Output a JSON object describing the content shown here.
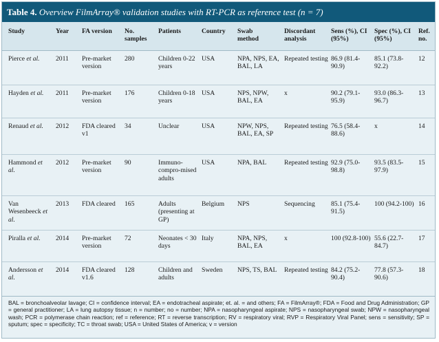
{
  "title": {
    "label": "Table 4.",
    "caption": "Overview FilmArray® validation studies with RT-PCR as reference test (n = 7)"
  },
  "headers": {
    "study": "Study",
    "year": "Year",
    "fa": "FA version",
    "samples": "No. samples",
    "patients": "Patients",
    "country": "Country",
    "swab": "Swab method",
    "discordant": "Discordant analysis",
    "sens": "Sens (%), CI (95%)",
    "spec": "Spec (%), CI (95%)",
    "ref": "Ref. no."
  },
  "rows": [
    {
      "study": "Pierce",
      "etal": "et al.",
      "year": "2011",
      "fa": "Pre-market version",
      "samples": "280",
      "patients": "Children 0-22 years",
      "country": "USA",
      "swab": "NPA, NPS, EA, BAL, LA",
      "discordant": "Repeated testing",
      "sens": "86.9 (81.4-90.9)",
      "spec": "85.1 (73.8-92.2)",
      "ref": "12"
    },
    {
      "study": "Hayden",
      "etal": "et al.",
      "year": "2011",
      "fa": "Pre-market version",
      "samples": "176",
      "patients": "Children 0-18 years",
      "country": "USA",
      "swab": "NPS, NPW, BAL, EA",
      "discordant": "x",
      "sens": "90.2 (79.1-95.9)",
      "spec": "93.0 (86.3-96.7)",
      "ref": "13"
    },
    {
      "study": "Renaud",
      "etal": "et al.",
      "year": "2012",
      "fa": "FDA cleared v1",
      "samples": "34",
      "patients": "Unclear",
      "country": "USA",
      "swab": "NPW, NPS, BAL, EA, SP",
      "discordant": "Repeated testing",
      "sens": "76.5 (58.4-88.6)",
      "spec": "x",
      "ref": "14"
    },
    {
      "study": "Hammond",
      "etal": "et al.",
      "year": "2012",
      "fa": "Pre-market version",
      "samples": "90",
      "patients": "Immuno-compro-mised adults",
      "country": "USA",
      "swab": "NPA, BAL",
      "discordant": "Repeated testing",
      "sens": "92.9 (75.0-98.8)",
      "spec": "93.5 (83.5-97.9)",
      "ref": "15"
    },
    {
      "study": "Van Wesenbeeck",
      "etal": "et al.",
      "year": "2013",
      "fa": "FDA cleared",
      "samples": "165",
      "patients": "Adults (presenting at GP)",
      "country": "Belgium",
      "swab": "NPS",
      "discordant": "Sequencing",
      "sens": "85.1 (75.4-91.5)",
      "spec": "100 (94.2-100)",
      "ref": "16"
    },
    {
      "study": "Piralla",
      "etal": "et al.",
      "year": "2014",
      "fa": "Pre-market version",
      "samples": "72",
      "patients": "Neonates < 30 days",
      "country": "Italy",
      "swab": "NPA, NPS, BAL, EA",
      "discordant": "x",
      "sens": "100 (92.8-100)",
      "spec": "55.6 (22.7-84.7)",
      "ref": "17"
    },
    {
      "study": "Andersson",
      "etal": "et al.",
      "year": "2014",
      "fa": "FDA cleared v1.6",
      "samples": "128",
      "patients": "Children and adults",
      "country": "Sweden",
      "swab": "NPS, TS, BAL",
      "discordant": "Repeated testing",
      "sens": "84.2 (75.2-90.4)",
      "spec": "77.8 (57.3-90.6)",
      "ref": "18"
    }
  ],
  "footnote": "BAL = bronchoalveolar lavage; CI = confidence interval; EA = endotracheal aspirate; et. al. = and others; FA = FilmArray®; FDA = Food and Drug Administration; GP = general practitioner; LA = lung autopsy tissue; n = number; no = number; NPA = nasopharyngeal aspirate; NPS = nasopharyngeal swab; NPW = nasopharyngeal wash; PCR = polymerase chain reaction; ref = reference; RT = reverse transcription; RV = respiratory viral; RVP = Respiratory Viral Panel; sens = sensitivity; SP = sputum; spec = specificity; TC = throat swab; USA = United States of America; v = version"
}
